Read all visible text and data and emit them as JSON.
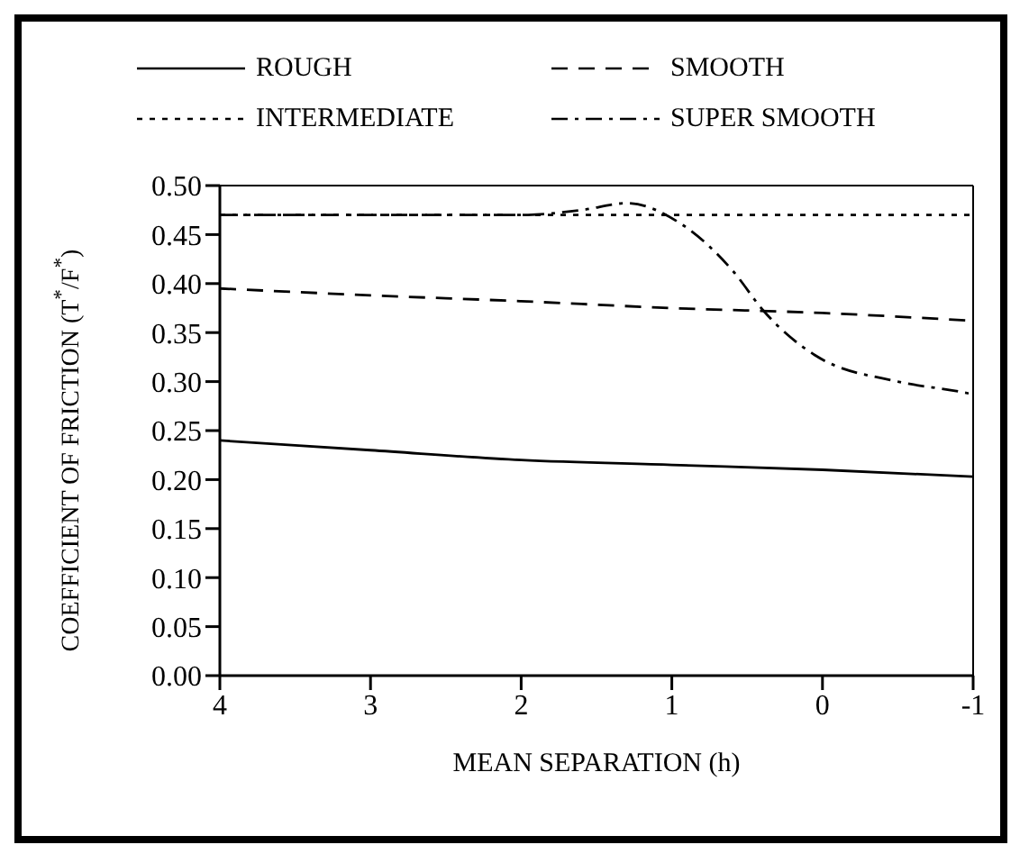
{
  "chart_data": {
    "type": "line",
    "xlabel": "MEAN SEPARATION (h)",
    "ylabel": "COEFFICIENT OF  FRICTION (T$^{*}$/F$^{*}$)",
    "xlim": [
      4,
      -1
    ],
    "xticks": [
      4,
      3,
      2,
      1,
      0,
      -1
    ],
    "ylim": [
      0,
      0.5
    ],
    "yticks": [
      {
        "value": 0,
        "label": "0.00"
      },
      {
        "value": 0.05,
        "label": "0.05"
      },
      {
        "value": 0.1,
        "label": "0.10"
      },
      {
        "value": 0.15,
        "label": "0.15"
      },
      {
        "value": 0.2,
        "label": "0.20"
      },
      {
        "value": 0.25,
        "label": "0.25"
      },
      {
        "value": 0.3,
        "label": "0.30"
      },
      {
        "value": 0.35,
        "label": "0.35"
      },
      {
        "value": 0.4,
        "label": "0.40"
      },
      {
        "value": 0.45,
        "label": "0.45"
      },
      {
        "value": 0.5,
        "label": "0.50"
      }
    ],
    "legend": "top",
    "marker": "none",
    "series": [
      {
        "name": "ROUGH",
        "color": "#000000",
        "line_style": "solid",
        "x": [
          4,
          3,
          2,
          1,
          0,
          -1
        ],
        "values": [
          0.24,
          0.23,
          0.22,
          0.215,
          0.21,
          0.203
        ]
      },
      {
        "name": "SMOOTH",
        "color": "#000000",
        "line_style": "dashed",
        "x": [
          4,
          3,
          2,
          1,
          0,
          -1
        ],
        "values": [
          0.395,
          0.388,
          0.382,
          0.375,
          0.37,
          0.362
        ]
      },
      {
        "name": "INTERMEDIATE",
        "color": "#000000",
        "line_style": "dotted",
        "x": [
          4,
          3,
          2,
          1,
          0,
          -1
        ],
        "values": [
          0.47,
          0.47,
          0.47,
          0.47,
          0.47,
          0.47
        ]
      },
      {
        "name": "SUPER SMOOTH",
        "color": "#000000",
        "line_style": "dashdot",
        "x": [
          4,
          3,
          2,
          1.6,
          1.3,
          0.93,
          0.59,
          0.39,
          0.05,
          -0.5,
          -0.9,
          -1
        ],
        "values": [
          0.47,
          0.47,
          0.47,
          0.475,
          0.482,
          0.46,
          0.412,
          0.372,
          0.327,
          0.3,
          0.29,
          0.287
        ]
      }
    ]
  }
}
